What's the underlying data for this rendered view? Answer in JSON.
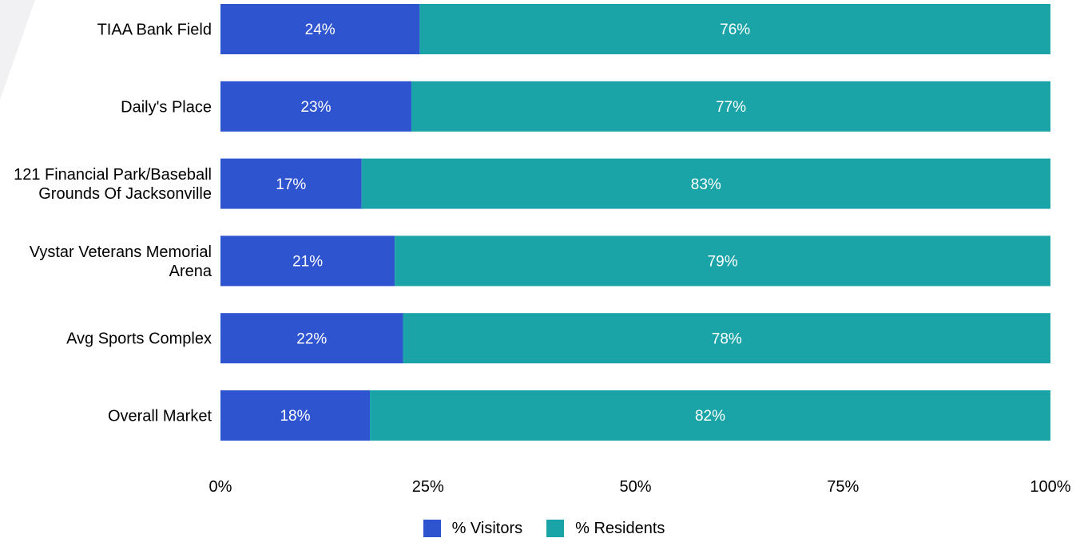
{
  "colors": {
    "visitors": "#2f54cf",
    "residents": "#1ba4a8",
    "background_decor": "#f1f1f3"
  },
  "chart_data": {
    "type": "bar",
    "orientation": "horizontal",
    "stacked": true,
    "categories": [
      "TIAA Bank Field",
      "Daily's Place",
      "121 Financial Park/Baseball Grounds Of Jacksonville",
      "Vystar Veterans Memorial Arena",
      "Avg Sports Complex",
      "Overall Market"
    ],
    "series": [
      {
        "name": "% Visitors",
        "values": [
          24,
          23,
          17,
          21,
          22,
          18
        ],
        "labels": [
          "24%",
          "23%",
          "17%",
          "21%",
          "22%",
          "18%"
        ]
      },
      {
        "name": "% Residents",
        "values": [
          76,
          77,
          83,
          79,
          78,
          82
        ],
        "labels": [
          "76%",
          "77%",
          "83%",
          "79%",
          "78%",
          "82%"
        ]
      }
    ],
    "xlim": [
      0,
      100
    ],
    "xticks": [
      "0%",
      "25%",
      "50%",
      "75%",
      "100%"
    ],
    "grid": false,
    "legend_position": "bottom"
  },
  "legend": {
    "visitors": "% Visitors",
    "residents": "% Residents"
  }
}
